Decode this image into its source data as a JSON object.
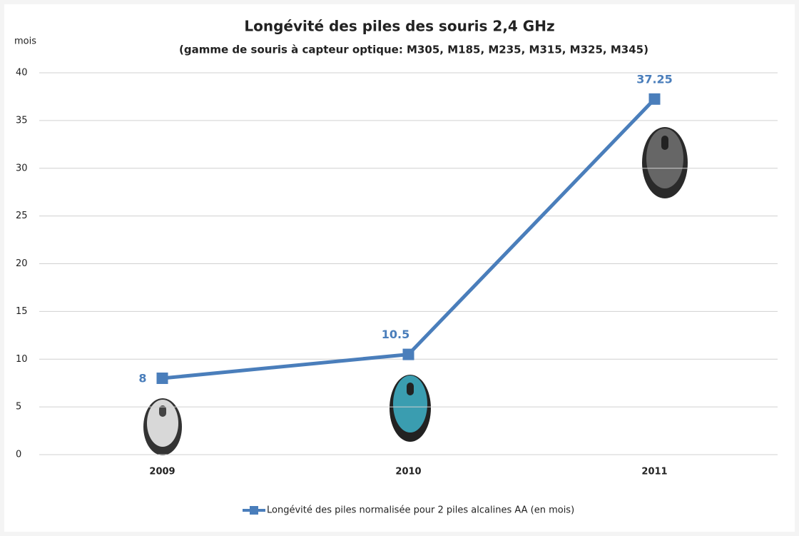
{
  "chart_data": {
    "type": "line",
    "title": "Longévité des piles des souris 2,4 GHz",
    "subtitle": "(gamme de souris à capteur optique: M305, M185, M235, M315, M325, M345)",
    "y_label": "mois",
    "categories": [
      "2009",
      "2010",
      "2011"
    ],
    "series": [
      {
        "name": "Longévité des piles normalisée pour 2 piles alcalines AA (en mois)",
        "color": "#4a7ebb",
        "values": [
          8,
          10.5,
          37.25
        ]
      }
    ],
    "ylim": [
      0,
      40
    ],
    "yticks": [
      0,
      5,
      10,
      15,
      20,
      25,
      30,
      35,
      40
    ],
    "grid": true,
    "legend": "bottom"
  }
}
